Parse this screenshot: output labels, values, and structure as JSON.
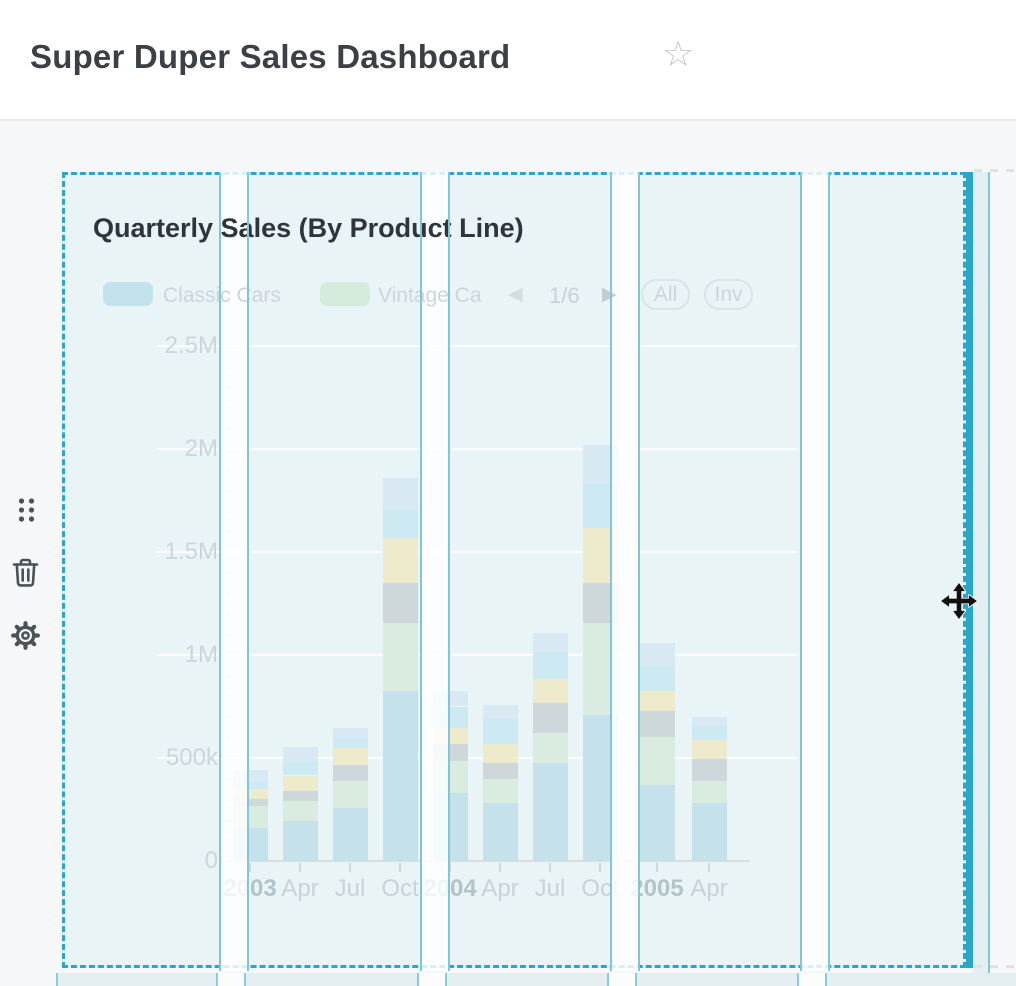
{
  "page": {
    "background": "#f6f7f8"
  },
  "header": {
    "title": "Super Duper Sales Dashboard",
    "favorite_icon": "star-outline"
  },
  "side_toolbar": {
    "drag_handle_icon": "drag-dots",
    "delete_icon": "trash",
    "settings_icon": "gear"
  },
  "card": {
    "title": "Quarterly Sales (By Product Line)",
    "state": {
      "selected": true,
      "being_dragged": true,
      "cursor": "move"
    },
    "legend": {
      "items": [
        {
          "label": "Classic Cars",
          "swatch_color": "#c2e2ec"
        },
        {
          "label": "Vintage Ca",
          "swatch_color": "#d5ecdd"
        }
      ],
      "pagination": {
        "label": "1/6",
        "prev_icon": "◀",
        "next_icon": "▶"
      },
      "buttons": [
        {
          "label": "All"
        },
        {
          "label": "Inv"
        }
      ]
    }
  },
  "chart_data": {
    "type": "bar",
    "stacked": true,
    "title": "Quarterly Sales (By Product Line)",
    "categories": [
      "2003",
      "Apr",
      "Jul",
      "Oct",
      "2004",
      "Apr",
      "Jul",
      "Oct",
      "2005",
      "Apr"
    ],
    "emphasized_category_indexes": [
      0,
      4,
      8
    ],
    "y_ticks": [
      "0",
      "500k",
      "1M",
      "1.5M",
      "2M",
      "2.5M"
    ],
    "ylim_usd": [
      0,
      2500000
    ],
    "grid": true,
    "legend_position": "top",
    "series": [
      {
        "name": "Classic Cars",
        "color": "#c5e2ec",
        "values_usd_k": [
          160,
          195,
          255,
          825,
          330,
          280,
          475,
          710,
          370,
          280
        ]
      },
      {
        "name": "Vintage Ca",
        "color": "#d9ecdf",
        "values_usd_k": [
          105,
          95,
          135,
          330,
          155,
          120,
          145,
          445,
          230,
          110
        ]
      },
      {
        "name": "(unlabeled gray)",
        "color": "#ced7da",
        "values_usd_k": [
          35,
          50,
          75,
          195,
          85,
          75,
          145,
          195,
          130,
          105
        ]
      },
      {
        "name": "(unlabeled cream)",
        "color": "#eeeacc",
        "values_usd_k": [
          50,
          75,
          85,
          220,
          75,
          95,
          120,
          265,
          95,
          90
        ]
      },
      {
        "name": "(unlabeled cyan)",
        "color": "#cdeaf2",
        "values_usd_k": [
          35,
          70,
          50,
          135,
          105,
          120,
          130,
          215,
          125,
          70
        ]
      },
      {
        "name": "(unlabeled pale blue)",
        "color": "#d8e9f3",
        "values_usd_k": [
          55,
          70,
          45,
          155,
          75,
          65,
          90,
          190,
          110,
          45
        ]
      }
    ],
    "totals_usd_k": [
      440,
      555,
      645,
      1860,
      825,
      755,
      1105,
      2020,
      1060,
      700
    ]
  },
  "overlay": {
    "accent_color": "#29a7c8",
    "grid_line_color": "#7ec6d8"
  }
}
